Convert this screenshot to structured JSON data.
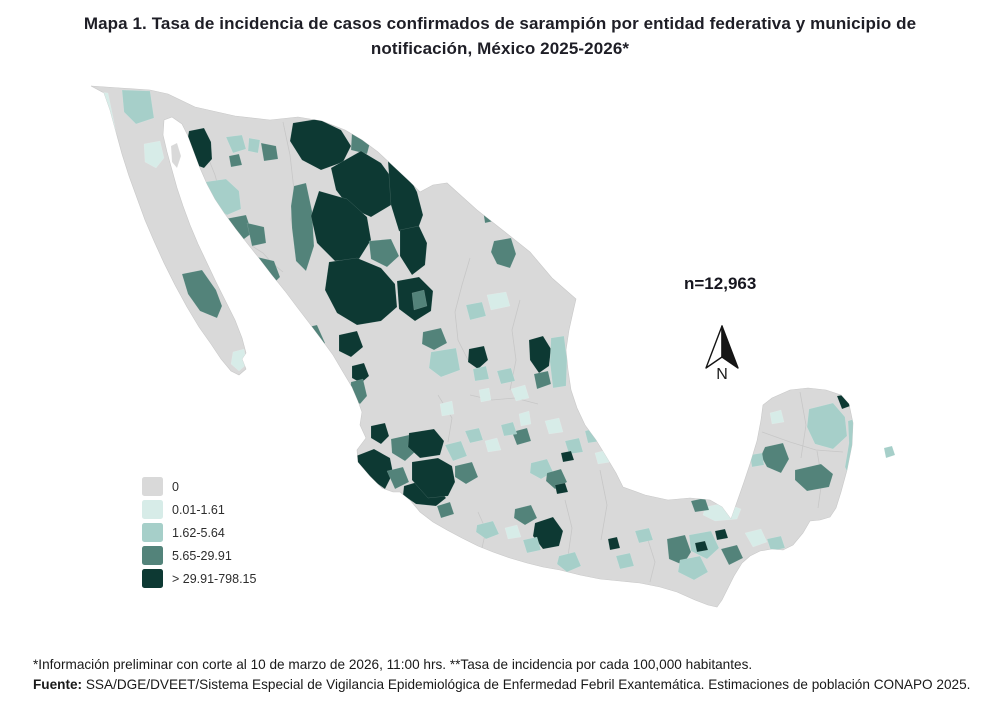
{
  "title": "Mapa 1. Tasa de incidencia de casos confirmados de sarampión por entidad federativa y municipio de  notificación, México 2025-2026*",
  "annotation": {
    "n_label": "n=12,963"
  },
  "compass": {
    "label": "N"
  },
  "legend": {
    "items": [
      {
        "label": "0",
        "color": "#d9d9d9"
      },
      {
        "label": "0.01-1.61",
        "color": "#d7ece8"
      },
      {
        "label": "1.62-5.64",
        "color": "#a6cfc9"
      },
      {
        "label": "5.65-29.91",
        "color": "#53837a"
      },
      {
        "label": "> 29.91-798.15",
        "color": "#0d3933"
      }
    ]
  },
  "footnotes": {
    "note": "*Información preliminar con corte al 10 de marzo de 2026, 11:00 hrs. **Tasa de incidencia por cada 100,000 habitantes.",
    "source_label": "Fuente:",
    "source_text": " SSA/DGE/DVEET/Sistema Especial de Vigilancia Epidemiológica de Enfermedad Febril Exantemática. Estimaciones de población CONAPO 2025."
  },
  "map": {
    "land_color": "#d9d9d9",
    "outline_color": "#c9c9c9",
    "state_line_color": "#c4c4c4",
    "regions": [
      {
        "c": 2,
        "p": "93,91 108,93 114,122 118,142 104,144 97,120"
      },
      {
        "c": 3,
        "p": "122,90 150,91 154,118 136,124 124,112"
      },
      {
        "c": 2,
        "p": "144,144 160,141 164,158 156,168 145,162"
      },
      {
        "c": 5,
        "p": "189,131 204,128 211,142 212,159 204,168 193,164 186,148"
      },
      {
        "c": 3,
        "p": "226,137 242,135 246,149 233,153"
      },
      {
        "c": 3,
        "p": "249,138 260,140 258,153 248,151"
      },
      {
        "c": 4,
        "p": "261,143 276,146 278,159 264,161"
      },
      {
        "c": 4,
        "p": "229,156 239,154 242,165 231,167"
      },
      {
        "c": 3,
        "p": "198,183 226,179 239,191 241,209 227,215 210,204 200,196"
      },
      {
        "c": 4,
        "p": "225,219 246,215 252,233 240,242 226,234"
      },
      {
        "c": 4,
        "p": "247,223 264,227 266,243 252,246"
      },
      {
        "c": 4,
        "p": "182,274 202,270 216,290 222,306 217,318 200,311 188,294"
      },
      {
        "c": 2,
        "p": "233,352 244,349 247,364 239,371 231,364"
      },
      {
        "c": 4,
        "p": "257,257 274,261 280,277 271,286 258,278"
      },
      {
        "c": 4,
        "p": "299,329 317,325 325,343 315,355 301,347"
      },
      {
        "c": 2,
        "p": "309,354 321,351 327,365 317,371 308,365"
      },
      {
        "c": 5,
        "p": "352,366 364,363 369,376 361,383 352,378"
      },
      {
        "c": 4,
        "p": "351,382 363,379 367,396 360,404 350,396"
      },
      {
        "c": 5,
        "p": "293,123 318,119 341,130 351,146 343,162 321,170 302,160 290,141"
      },
      {
        "c": 4,
        "p": "352,131 371,139 367,154 351,150"
      },
      {
        "c": 5,
        "p": "331,168 361,151 381,163 394,181 391,205 371,217 349,207 336,190"
      },
      {
        "c": 5,
        "p": "388,161 407,173 417,192 423,215 415,237 399,231 391,205"
      },
      {
        "c": 4,
        "p": "294,186 306,183 312,211 314,246 306,271 296,261 292,228 291,206"
      },
      {
        "c": 5,
        "p": "319,191 347,199 367,217 371,240 359,259 335,261 317,243 311,216"
      },
      {
        "c": 5,
        "p": "329,262 357,258 381,268 395,284 397,307 381,321 357,325 337,313 325,290"
      },
      {
        "c": 4,
        "p": "369,241 391,239 399,256 387,267 371,259"
      },
      {
        "c": 5,
        "p": "397,281 419,277 433,291 431,311 415,321 399,309"
      },
      {
        "c": 4,
        "p": "483,210 495,207 498,220 485,223"
      },
      {
        "c": 5,
        "p": "400,230 419,226 427,243 425,265 412,275 400,256"
      },
      {
        "c": 4,
        "p": "494,241 511,238 516,254 510,268 497,264 491,252"
      },
      {
        "c": 5,
        "p": "339,335 357,331 363,347 351,357 339,351"
      },
      {
        "c": 4,
        "p": "423,332 441,328 447,343 434,350 422,344"
      },
      {
        "c": 4,
        "p": "412,293 424,290 427,306 414,310"
      },
      {
        "c": 3,
        "p": "431,352 456,348 460,370 441,377 429,368"
      },
      {
        "c": 5,
        "p": "469,349 484,346 488,360 478,369 468,362"
      },
      {
        "c": 3,
        "p": "473,369 486,366 489,379 475,381"
      },
      {
        "c": 3,
        "p": "466,305 482,302 486,316 470,320"
      },
      {
        "c": 2,
        "p": "487,295 506,292 510,306 491,310"
      },
      {
        "c": 5,
        "p": "529,340 543,336 551,349 549,366 539,373 530,360"
      },
      {
        "c": 4,
        "p": "534,374 548,371 551,384 537,389"
      },
      {
        "c": 3,
        "p": "551,338 564,336 567,360 566,386 553,388 550,362"
      },
      {
        "c": 2,
        "p": "479,390 489,388 491,400 481,402"
      },
      {
        "c": 2,
        "p": "440,404 452,401 454,414 442,416"
      },
      {
        "c": 2,
        "p": "519,414 529,411 531,424 521,426"
      },
      {
        "c": 4,
        "p": "512,432 527,428 531,441 517,445"
      },
      {
        "c": 2,
        "p": "511,389 525,385 529,398 516,401"
      },
      {
        "c": 3,
        "p": "497,371 511,368 515,381 501,384"
      },
      {
        "c": 5,
        "p": "371,426 385,423 389,436 381,444 371,438"
      },
      {
        "c": 4,
        "p": "391,439 409,435 417,450 405,461 392,453"
      },
      {
        "c": 5,
        "p": "409,433 434,429 444,441 440,455 420,458 408,447"
      },
      {
        "c": 5,
        "p": "356,456 374,449 390,458 393,473 385,489 368,477 355,464"
      },
      {
        "c": 5,
        "p": "404,486 424,480 438,488 446,498 436,506 416,504 403,495"
      },
      {
        "c": 4,
        "p": "387,471 403,467 409,482 395,489"
      },
      {
        "c": 2,
        "p": "429,467 443,463 449,476 437,481"
      },
      {
        "c": 3,
        "p": "445,445 461,441 467,456 453,461"
      },
      {
        "c": 5,
        "p": "412,462 438,458 452,466 455,482 448,496 428,498 412,480"
      },
      {
        "c": 4,
        "p": "437,506 450,502 454,514 441,518"
      },
      {
        "c": 4,
        "p": "455,466 472,462 478,477 466,484 455,477"
      },
      {
        "c": 3,
        "p": "465,431 479,428 483,440 470,443"
      },
      {
        "c": 2,
        "p": "485,441 497,438 501,450 488,452"
      },
      {
        "c": 3,
        "p": "501,425 513,422 517,434 504,436"
      },
      {
        "c": 3,
        "p": "531,463 547,459 553,472 541,479 530,473"
      },
      {
        "c": 4,
        "p": "547,473 561,469 567,482 555,489 546,481"
      },
      {
        "c": 5,
        "p": "555,485 565,483 568,492 557,494"
      },
      {
        "c": 2,
        "p": "545,421 559,418 563,432 549,434"
      },
      {
        "c": 3,
        "p": "565,441 579,438 583,452 569,454"
      },
      {
        "c": 5,
        "p": "561,453 571,451 574,460 563,462"
      },
      {
        "c": 3,
        "p": "585,431 597,428 601,441 588,443"
      },
      {
        "c": 2,
        "p": "595,453 607,450 611,462 598,464"
      },
      {
        "c": 5,
        "p": "535,523 553,517 563,531 559,546 543,549 533,536"
      },
      {
        "c": 4,
        "p": "515,509 531,505 537,518 525,525 514,518"
      },
      {
        "c": 3,
        "p": "477,525 493,521 499,534 486,539 476,532"
      },
      {
        "c": 2,
        "p": "505,528 517,525 521,537 508,539"
      },
      {
        "c": 3,
        "p": "523,540 537,537 541,550 527,553"
      },
      {
        "c": 3,
        "p": "559,556 575,552 581,566 567,572 557,564"
      },
      {
        "c": 5,
        "p": "608,539 617,537 620,548 610,550"
      },
      {
        "c": 3,
        "p": "635,531 649,528 653,540 639,543"
      },
      {
        "c": 3,
        "p": "616,556 630,553 634,566 620,569"
      },
      {
        "c": 4,
        "p": "667,539 685,535 691,552 683,565 669,559"
      },
      {
        "c": 3,
        "p": "689,535 711,531 719,548 707,559 691,551"
      },
      {
        "c": 5,
        "p": "695,543 705,541 708,550 697,552"
      },
      {
        "c": 5,
        "p": "715,531 725,529 728,538 717,540"
      },
      {
        "c": 3,
        "p": "680,560 700,556 708,572 694,580 678,572"
      },
      {
        "c": 4,
        "p": "721,549 737,545 743,558 729,565"
      },
      {
        "c": 2,
        "p": "705,507 725,503 741,509 737,519 715,521 703,515"
      },
      {
        "c": 4,
        "p": "691,501 705,498 709,510 695,512"
      },
      {
        "c": 2,
        "p": "745,533 761,529 767,542 753,547"
      },
      {
        "c": 3,
        "p": "767,539 781,536 785,548 771,551"
      },
      {
        "c": 4,
        "p": "765,447 783,443 789,459 781,473 767,467 761,456"
      },
      {
        "c": 3,
        "p": "750,455 762,453 764,465 752,467"
      },
      {
        "c": 4,
        "p": "795,470 821,464 833,474 829,487 807,491 795,480"
      },
      {
        "c": 3,
        "p": "809,409 833,403 845,417 847,436 833,449 815,444 807,427"
      },
      {
        "c": 5,
        "p": "837,396 849,394 853,405 842,409"
      },
      {
        "c": 2,
        "p": "770,413 781,410 784,422 772,424"
      },
      {
        "c": 3,
        "p": "848,421 860,417 866,440 862,465 853,484 845,467 849,443"
      }
    ],
    "islands": [
      {
        "c": 3,
        "p": "884,448 892,446 895,455 886,458"
      },
      {
        "c": 1,
        "p": "171,146 177,143 181,156 177,168 172,162"
      }
    ]
  }
}
